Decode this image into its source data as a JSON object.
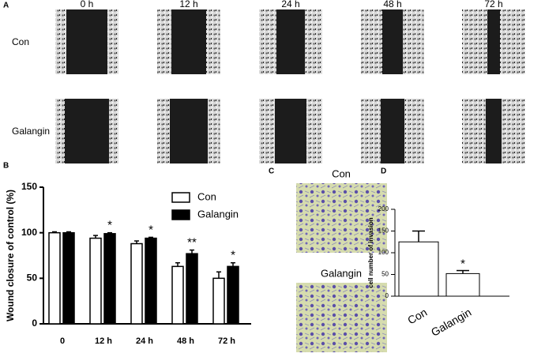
{
  "panel_a": {
    "letter": "A",
    "times": [
      "0 h",
      "12 h",
      "24 h",
      "48 h",
      "72 h"
    ],
    "rows": [
      "Con",
      "Galangin"
    ]
  },
  "panel_c": {
    "letter": "C",
    "labels": [
      "Con",
      "Galangin"
    ]
  },
  "chart_data": [
    {
      "type": "bar",
      "letter": "B",
      "ylabel": "Wound closure of control (%)",
      "categories": [
        "0",
        "12 h",
        "24 h",
        "48 h",
        "72 h"
      ],
      "series": [
        {
          "name": "Con",
          "color": "#ffffff",
          "values": [
            100,
            94,
            88,
            63,
            50
          ],
          "errors": [
            1,
            3,
            3,
            4,
            7
          ]
        },
        {
          "name": "Galangin",
          "color": "#000000",
          "values": [
            100,
            99,
            94,
            77,
            63
          ],
          "errors": [
            1,
            1,
            1,
            4,
            4
          ]
        }
      ],
      "annotations": [
        null,
        "*",
        "*",
        "**",
        "*"
      ],
      "ylim": [
        0,
        150
      ],
      "yticks": [
        0,
        50,
        100,
        150
      ],
      "legend": "top-right"
    },
    {
      "type": "bar",
      "letter": "D",
      "ylabel": "cell number of invasion",
      "categories": [
        "Con",
        "Galangin"
      ],
      "values": [
        125,
        52
      ],
      "errors": [
        25,
        7
      ],
      "color": "#ffffff",
      "annotations": [
        null,
        "*"
      ],
      "ylim": [
        0,
        200
      ],
      "yticks": [
        0,
        50,
        100,
        150,
        200
      ]
    }
  ]
}
